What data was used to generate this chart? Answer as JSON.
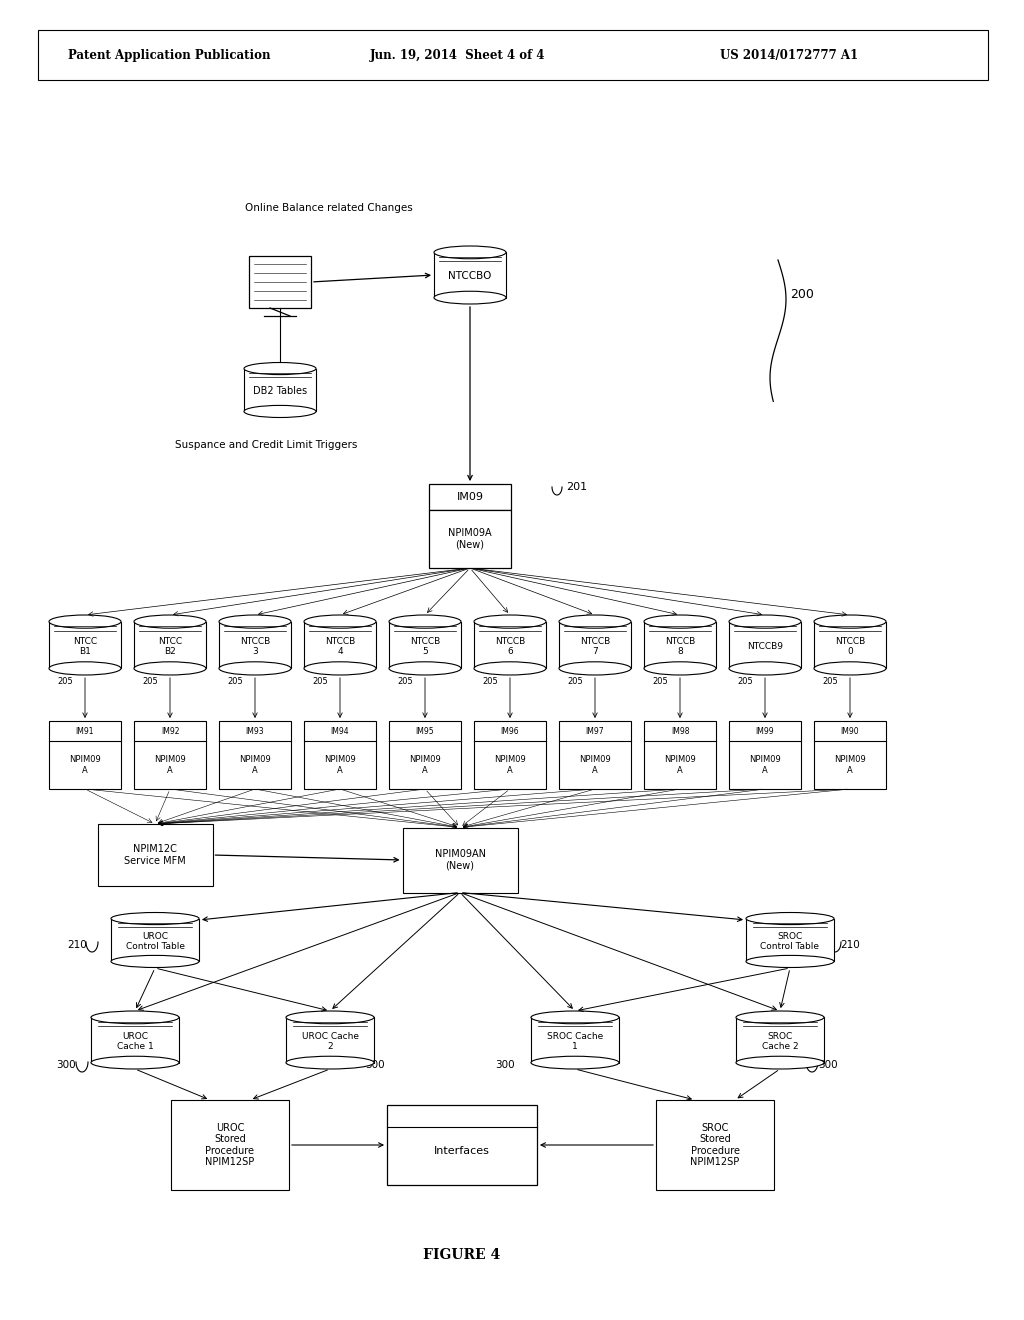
{
  "bg_color": "#ffffff",
  "header_left": "Patent Application Publication",
  "header_mid": "Jun. 19, 2014  Sheet 4 of 4",
  "header_right": "US 2014/0172777 A1",
  "figure_label": "FIGURE 4",
  "top_label": "Online Balance related Changes",
  "db2_label": "DB2 Tables",
  "suspance_label": "Suspance and Credit Limit Triggers",
  "ntccbo_label": "NTCCBO",
  "im09_box": "IM09",
  "npim09a_box": "NPIM09A\n(New)",
  "ntccb_labels": [
    "NTCC\nB1",
    "NTCC\nB2",
    "NTCCB\n3",
    "NTCCB\n4",
    "NTCCB\n5",
    "NTCCB\n6",
    "NTCCB\n7",
    "NTCCB\n8",
    "NTCCB9",
    "NTCCB\n0"
  ],
  "im9x_labels": [
    "IM91",
    "IM92",
    "IM93",
    "IM94",
    "IM95",
    "IM96",
    "IM97",
    "IM98",
    "IM99",
    "IM90"
  ],
  "npim09_sub": "NPIM09\nA",
  "npim12c_box": "NPIM12C\nService MFM",
  "npim09an_box": "NPIM09AN\n(New)",
  "uroc_ct_label": "UROC\nControl Table",
  "sroc_ct_label": "SROC\nControl Table",
  "uroc_sp": "UROC\nStored\nProcedure\nNPIM12SP",
  "sroc_sp": "SROC\nStored\nProcedure\nNPIM12SP",
  "interfaces_label": "Interfaces"
}
